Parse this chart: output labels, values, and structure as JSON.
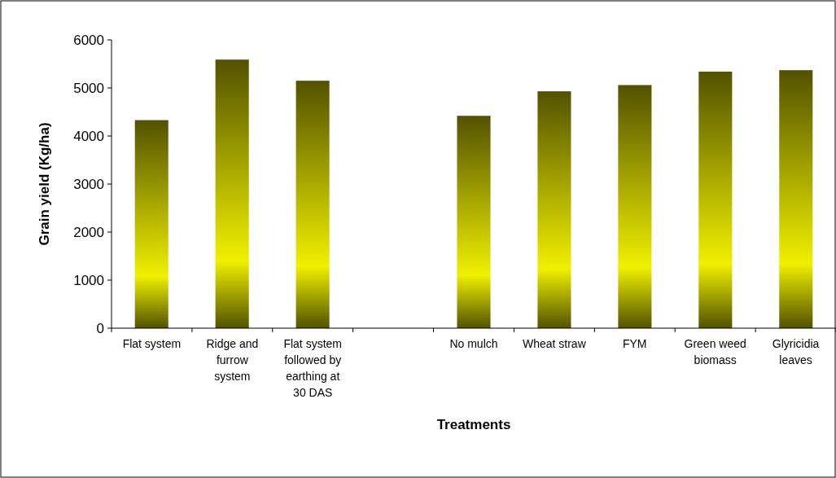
{
  "chart_data": {
    "type": "bar",
    "xlabel": "Treatments",
    "ylabel": "Grain yield (Kg/ha)",
    "categories": [
      "Flat system",
      "Ridge and furrow system",
      "Flat system followed by earthing at 30 DAS",
      null,
      "No mulch",
      "Wheat straw",
      "FYM",
      "Green weed biomass",
      "Glyricidia leaves"
    ],
    "values": [
      4330,
      5590,
      5150,
      null,
      4420,
      4930,
      5060,
      5340,
      5370
    ],
    "color": "#f0f000",
    "ylim": [
      0,
      6000
    ],
    "yticks": [
      0,
      1000,
      2000,
      3000,
      4000,
      5000,
      6000
    ],
    "grid": false
  }
}
